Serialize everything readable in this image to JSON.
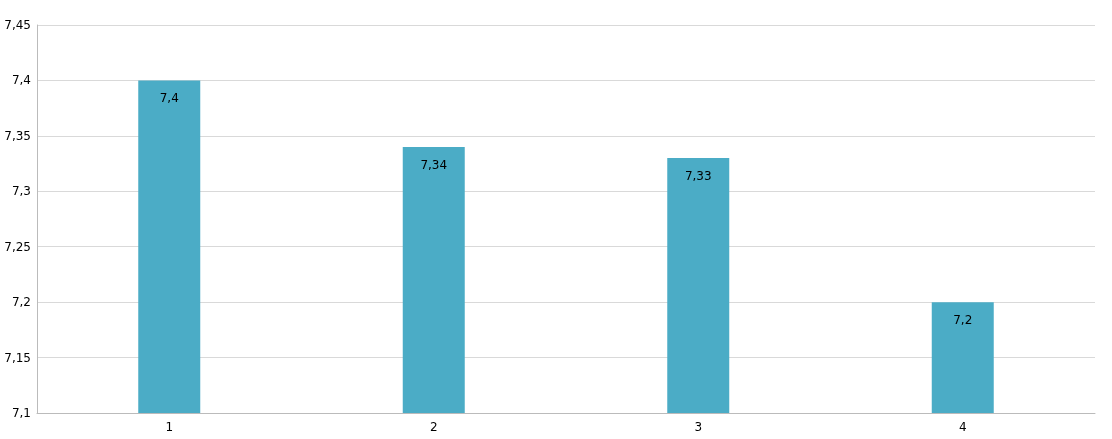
{
  "chart_data": {
    "type": "bar",
    "categories": [
      "1",
      "2",
      "3",
      "4"
    ],
    "values": [
      7.4,
      7.34,
      7.33,
      7.2
    ],
    "value_labels": [
      "7,4",
      "7,34",
      "7,33",
      "7,2"
    ],
    "color": "#4bacc6",
    "ylim": [
      7.1,
      7.45
    ],
    "yticks": [
      {
        "value": 7.1,
        "label": "7,1"
      },
      {
        "value": 7.15,
        "label": "7,15"
      },
      {
        "value": 7.2,
        "label": "7,2"
      },
      {
        "value": 7.25,
        "label": "7,25"
      },
      {
        "value": 7.3,
        "label": "7,3"
      },
      {
        "value": 7.35,
        "label": "7,35"
      },
      {
        "value": 7.4,
        "label": "7,4"
      },
      {
        "value": 7.45,
        "label": "7,45"
      }
    ],
    "grid": "y"
  }
}
